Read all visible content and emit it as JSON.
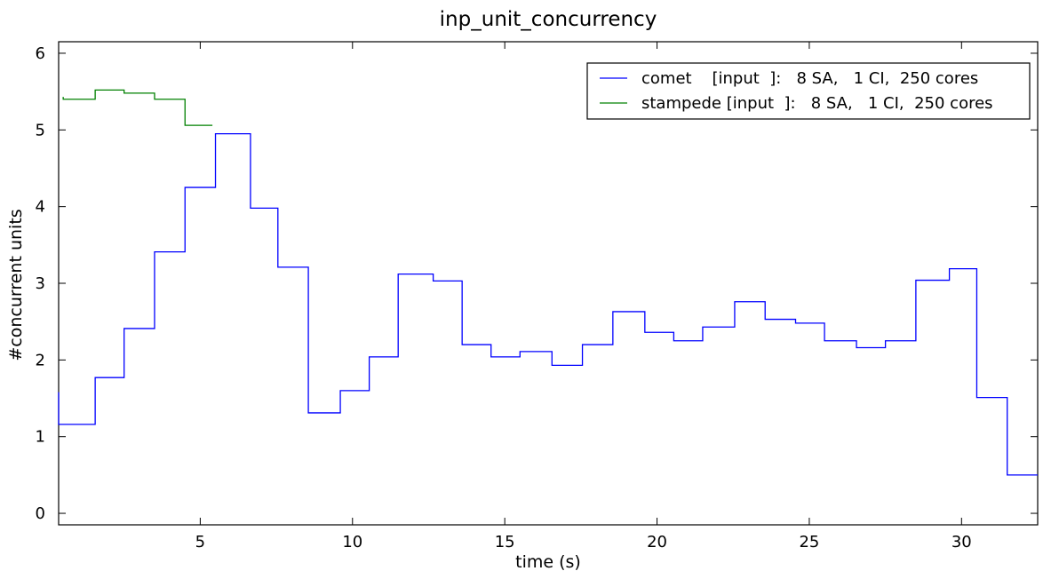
{
  "chart_data": {
    "type": "line",
    "title": "inp_unit_concurrency",
    "xlabel": "time (s)",
    "ylabel": "#concurrent units",
    "xlim": [
      0.35,
      32.5
    ],
    "ylim": [
      -0.15,
      6.15
    ],
    "x_ticks": [
      5,
      10,
      15,
      20,
      25,
      30
    ],
    "y_ticks": [
      0,
      1,
      2,
      3,
      4,
      5,
      6
    ],
    "grid": false,
    "legend_position": "top-right",
    "step": "post",
    "series": [
      {
        "name": "comet    [input  ]:   8 SA,   1 CI,  250 cores",
        "color": "#0000ff",
        "x": [
          0.35,
          0.35,
          1.55,
          2.5,
          3.5,
          4.5,
          5.5,
          6.65,
          7.55,
          8.55,
          9.6,
          10.55,
          11.5,
          12.65,
          13.6,
          14.55,
          15.5,
          16.55,
          17.55,
          18.55,
          19.6,
          20.55,
          21.5,
          22.55,
          23.55,
          24.55,
          25.5,
          26.55,
          27.5,
          28.5,
          29.6,
          30.5,
          31.5,
          32.5
        ],
        "y": [
          1.58,
          1.16,
          1.77,
          2.41,
          3.41,
          4.25,
          4.95,
          3.98,
          3.21,
          1.31,
          1.6,
          2.04,
          3.12,
          3.03,
          2.2,
          2.04,
          2.11,
          1.93,
          2.2,
          2.63,
          2.36,
          2.25,
          2.43,
          2.76,
          2.53,
          2.48,
          2.25,
          2.16,
          2.25,
          3.04,
          3.19,
          1.51,
          0.5,
          0.5
        ]
      },
      {
        "name": "stampede [input  ]:   8 SA,   1 CI,  250 cores",
        "color": "#008000",
        "x": [
          0.5,
          0.5,
          1.55,
          2.5,
          3.5,
          4.5,
          5.4
        ],
        "y": [
          5.43,
          5.4,
          5.52,
          5.48,
          5.4,
          5.06,
          5.06
        ]
      }
    ]
  }
}
